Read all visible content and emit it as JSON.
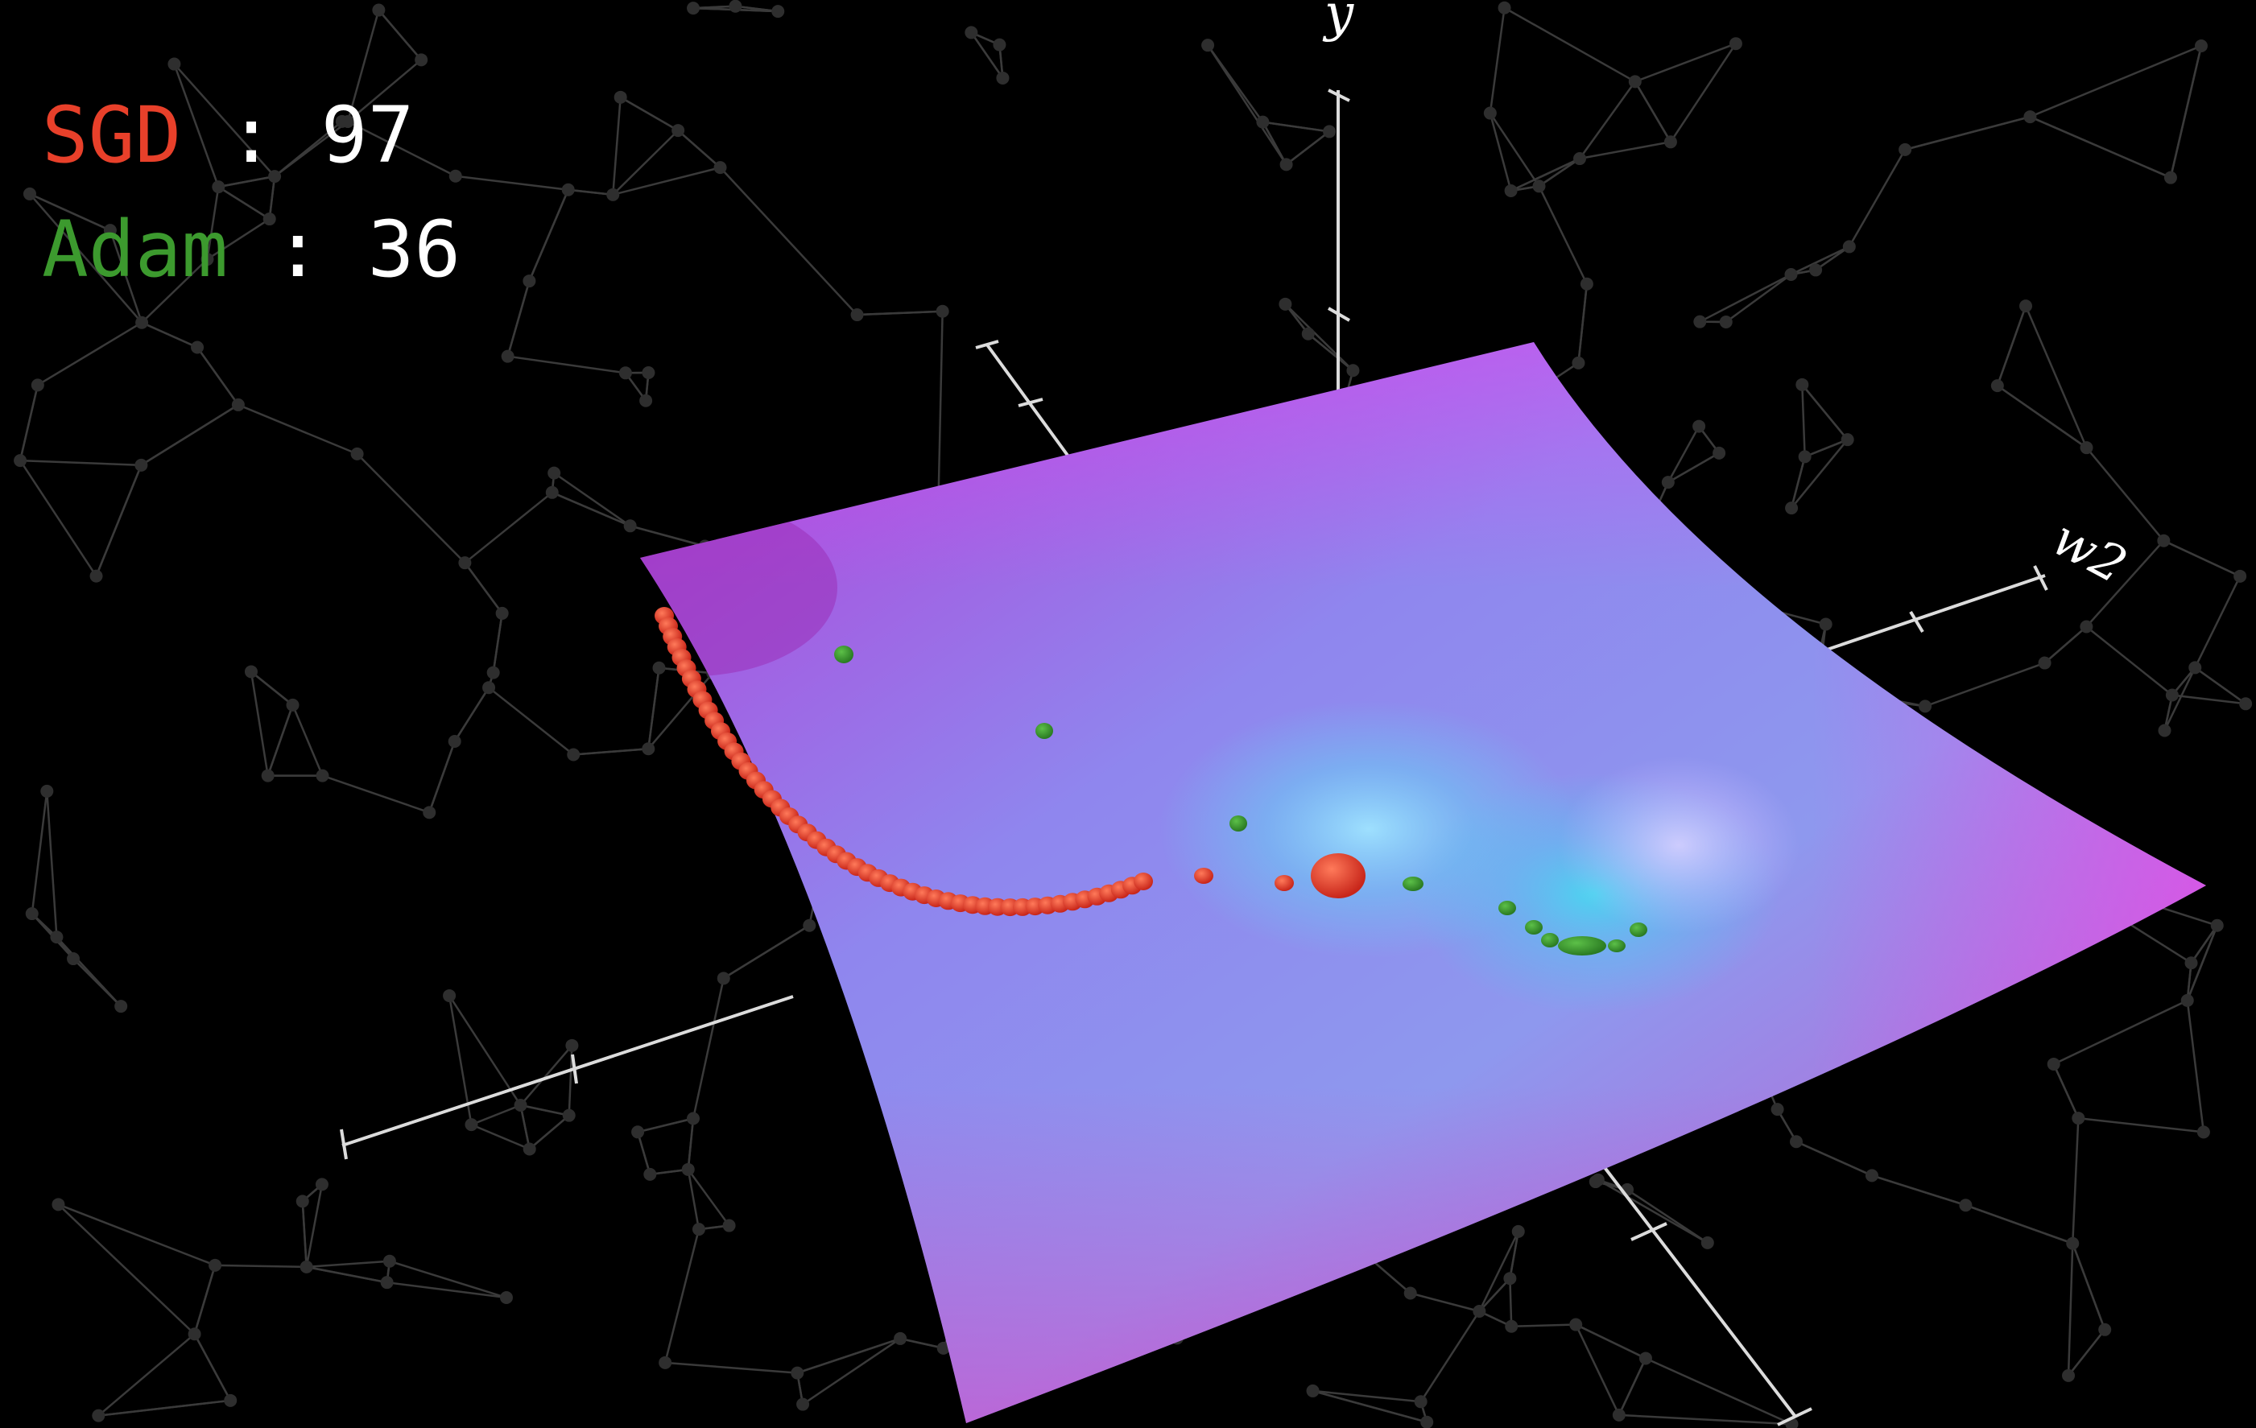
{
  "legend": {
    "sgd": {
      "name": "SGD",
      "separator": " : ",
      "value": "97",
      "color": "#e8402a"
    },
    "adam": {
      "name": "Adam",
      "separator": " : ",
      "value": "36",
      "color": "#3c9a2e"
    }
  },
  "axes": {
    "vertical": "y",
    "right": "w2"
  },
  "colors": {
    "background": "#000000",
    "network_lines": "#3a3a3a",
    "surface_edge": "#e040f0",
    "surface_mid": "#8c8cf0",
    "minimum_glow": "#5fd0ff",
    "axis": "#dddddd"
  }
}
